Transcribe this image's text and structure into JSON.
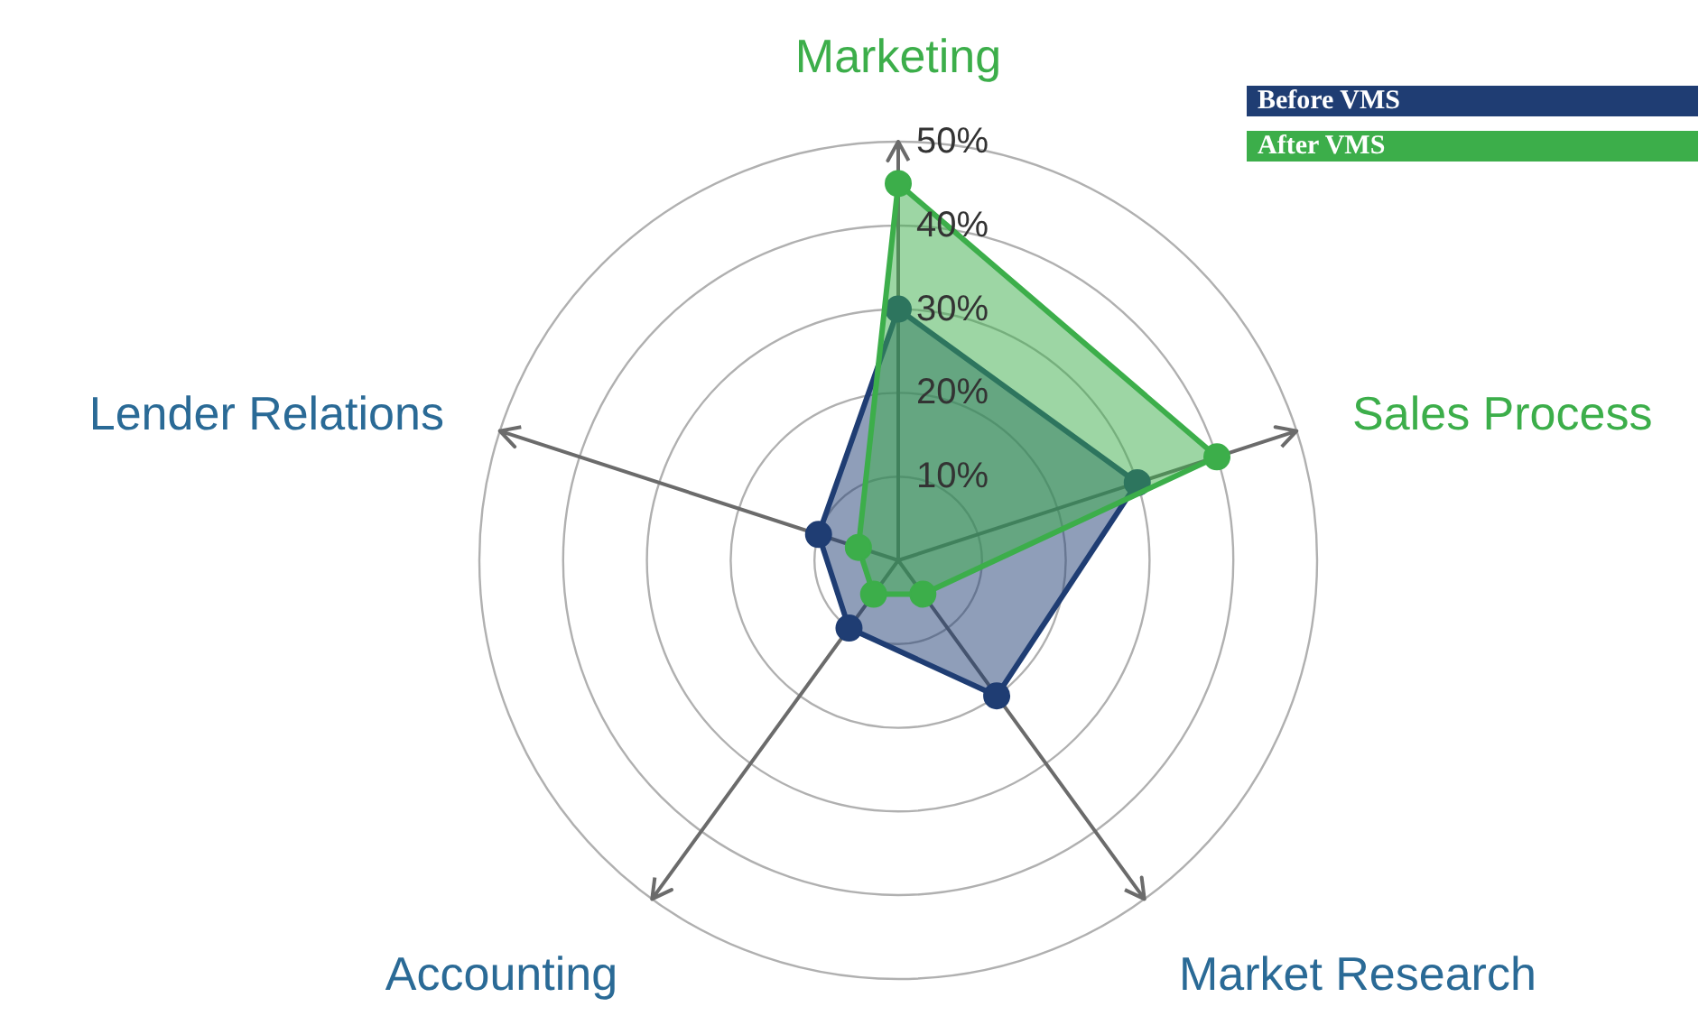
{
  "chart_data": {
    "type": "radar",
    "categories": [
      "Marketing",
      "Sales Process",
      "Market Research",
      "Accounting",
      "Lender Relations"
    ],
    "series": [
      {
        "name": "Before VMS",
        "color": "#1f3d73",
        "values": [
          30,
          30,
          20,
          10,
          10
        ]
      },
      {
        "name": "After VMS",
        "color": "#3cae4a",
        "values": [
          45,
          40,
          5,
          5,
          5
        ]
      }
    ],
    "ylim": [
      0,
      50
    ],
    "yticks": [
      {
        "value": 10,
        "label": "10%"
      },
      {
        "value": 20,
        "label": "20%"
      },
      {
        "value": 30,
        "label": "30%"
      },
      {
        "value": 40,
        "label": "40%"
      },
      {
        "value": 50,
        "label": "50%"
      }
    ],
    "grid": true,
    "legend": "top right",
    "marker": "circle"
  }
}
